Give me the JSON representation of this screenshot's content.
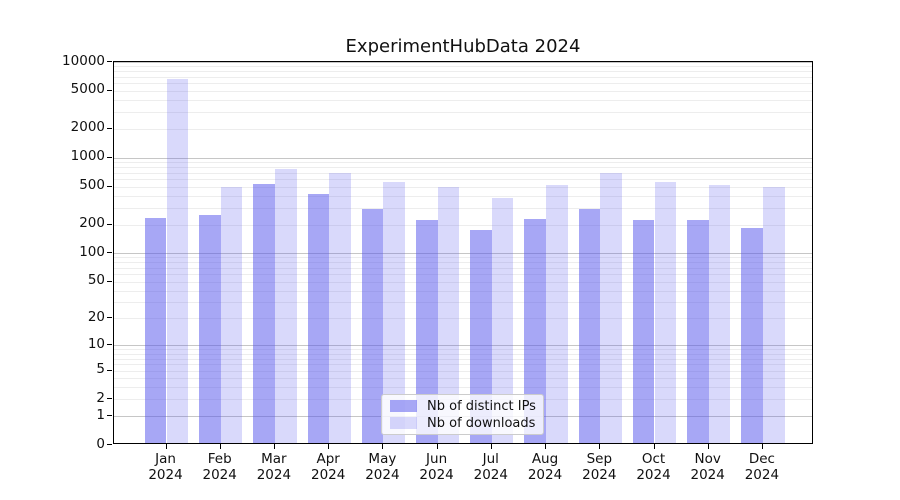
{
  "chart_data": {
    "type": "bar",
    "title": "ExperimentHubData 2024",
    "categories": [
      "Jan",
      "Feb",
      "Mar",
      "Apr",
      "May",
      "Jun",
      "Jul",
      "Aug",
      "Sep",
      "Oct",
      "Nov",
      "Dec"
    ],
    "category_year": "2024",
    "series": [
      {
        "name": "Nb of distinct IPs",
        "fill": "rgba(80,80,235,0.5)",
        "color_over_white": "#a7a7f5",
        "values": [
          236,
          252,
          536,
          421,
          294,
          222,
          175,
          231,
          294,
          222,
          221,
          182
        ]
      },
      {
        "name": "Nb of downloads",
        "fill": "rgba(80,80,235,0.22)",
        "color_over_white": "#d8d8fa",
        "values": [
          6650,
          495,
          768,
          688,
          554,
          495,
          383,
          516,
          688,
          558,
          515,
          494
        ]
      }
    ],
    "yscale": "log1p",
    "ylim": [
      0,
      10000
    ],
    "yticks": [
      10000,
      5000,
      2000,
      1000,
      500,
      200,
      100,
      50,
      20,
      10,
      5,
      2,
      1,
      0
    ],
    "grid": true,
    "legend_position": "lower center"
  },
  "colors": {
    "grid_major": "#c6c6c6",
    "grid_minor": "#ededed",
    "axis": "#000000",
    "text": "#111111",
    "legend_border": "#cccccc"
  }
}
